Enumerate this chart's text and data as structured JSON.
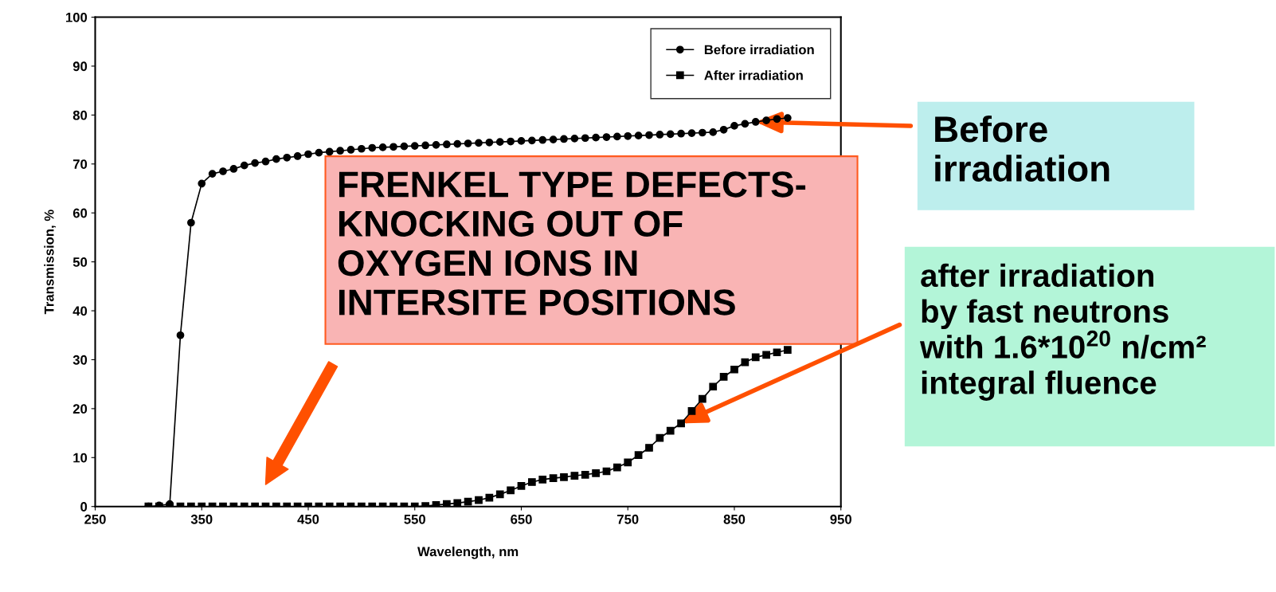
{
  "chart_data": {
    "type": "line",
    "xlabel": "Wavelength, nm",
    "ylabel": "Transmission, %",
    "xlim": [
      250,
      950
    ],
    "xticks": [
      250,
      350,
      450,
      550,
      650,
      750,
      850,
      950
    ],
    "ylim": [
      0,
      100
    ],
    "yticks": [
      0,
      10,
      20,
      30,
      40,
      50,
      60,
      70,
      80,
      90,
      100
    ],
    "grid": false,
    "legend": "top right",
    "line_style": "solid",
    "x": [
      300,
      310,
      320,
      330,
      340,
      350,
      360,
      370,
      380,
      390,
      400,
      410,
      420,
      430,
      440,
      450,
      460,
      470,
      480,
      490,
      500,
      510,
      520,
      530,
      540,
      550,
      560,
      570,
      580,
      590,
      600,
      610,
      620,
      630,
      640,
      650,
      660,
      670,
      680,
      690,
      700,
      710,
      720,
      730,
      740,
      750,
      760,
      770,
      780,
      790,
      800,
      810,
      820,
      830,
      840,
      850,
      860,
      870,
      880,
      890,
      900
    ],
    "series": [
      {
        "name": "Before irradiation",
        "color": "#000000",
        "marker": "circle",
        "values": [
          0,
          0.2,
          0.5,
          35,
          58,
          66,
          68,
          68.5,
          69,
          69.7,
          70.2,
          70.5,
          71,
          71.3,
          71.6,
          72,
          72.3,
          72.5,
          72.7,
          72.9,
          73.1,
          73.3,
          73.4,
          73.5,
          73.6,
          73.7,
          73.8,
          73.9,
          74,
          74.1,
          74.2,
          74.3,
          74.4,
          74.5,
          74.6,
          74.7,
          74.8,
          74.9,
          75,
          75.1,
          75.2,
          75.3,
          75.4,
          75.5,
          75.6,
          75.7,
          75.8,
          75.9,
          76,
          76.1,
          76.2,
          76.3,
          76.4,
          76.5,
          77,
          77.8,
          78.2,
          78.6,
          78.9,
          79.2,
          79.4
        ]
      },
      {
        "name": "After irradiation",
        "color": "#000000",
        "marker": "square",
        "values": [
          0,
          0,
          0,
          0,
          0,
          0,
          0,
          0,
          0,
          0,
          0,
          0,
          0,
          0,
          0,
          0,
          0,
          0,
          0,
          0,
          0,
          0,
          0,
          0,
          0,
          0,
          0.1,
          0.3,
          0.5,
          0.7,
          1,
          1.3,
          1.8,
          2.5,
          3.3,
          4.2,
          5,
          5.5,
          5.8,
          6,
          6.3,
          6.5,
          6.8,
          7.2,
          8,
          9,
          10.5,
          12,
          14,
          15.5,
          17,
          19.5,
          22,
          24.5,
          26.5,
          28,
          29.5,
          30.5,
          31,
          31.5,
          32
        ]
      }
    ],
    "annotations": [
      "FRENKEL TYPE DEFECTS-\nKNOCKING OUT OF\nOXYGEN IONS IN\nINTERSITE POSITIONS",
      {
        "text": "Before\nirradiation",
        "x": 870,
        "y": 78.6
      },
      {
        "text": "after irradiation\nby fast neutrons\nwith 1.6*10$^{20}$ n/cm²\nintegral fluence",
        "x": 800,
        "y": 17
      }
    ]
  }
}
